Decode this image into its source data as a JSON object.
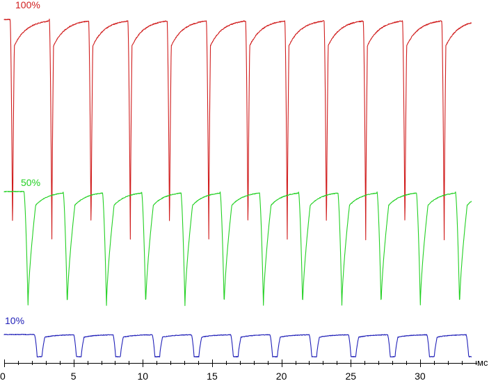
{
  "chart_data": {
    "type": "line",
    "title": "",
    "xlabel": "мс",
    "ylabel": "",
    "x_unit": "мс",
    "xlim": [
      0,
      34.5
    ],
    "grid": false,
    "legend": "inline",
    "x_ticks": [
      0,
      5,
      10,
      15,
      20,
      25,
      30
    ],
    "x_tick_labels": [
      "0",
      "5",
      "10",
      "15",
      "20",
      "25",
      "30"
    ],
    "series": [
      {
        "name": "100%",
        "color": "#d01c1c",
        "period_ms": 2.83,
        "first_pulse_ms": 0.61,
        "pulse_count": 12,
        "pulse_shape": "narrow drop to zero, fast recovery to plateau",
        "high_level_relative": 1.0,
        "low_level_relative": 0.0,
        "end_ms": 33.7
      },
      {
        "name": "50%",
        "color": "#22d022",
        "period_ms": 2.83,
        "first_pulse_ms": 1.72,
        "pulse_count": 12,
        "pulse_shape": "drop to zero, gradual recovery to plateau",
        "high_level_relative": 0.5,
        "low_level_relative": 0.0,
        "end_ms": 33.7
      },
      {
        "name": "10%",
        "color": "#2020b8",
        "period_ms": 2.83,
        "first_pulse_ms": 2.38,
        "pulse_count": 12,
        "pulse_shape": "drop to zero with flat bottom",
        "high_level_relative": 0.1,
        "low_level_relative": 0.0,
        "end_ms": 33.7
      }
    ]
  }
}
